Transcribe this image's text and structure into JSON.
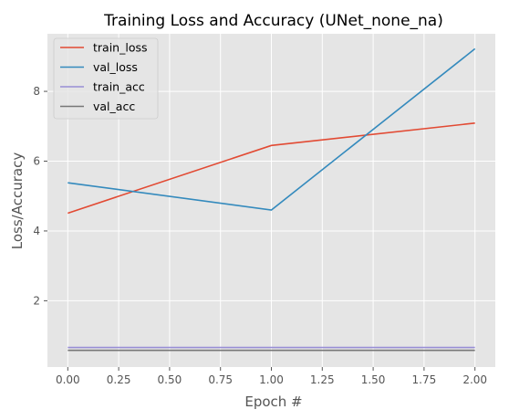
{
  "chart_data": {
    "type": "line",
    "title": "Training Loss and Accuracy (UNet_none_na)",
    "xlabel": "Epoch #",
    "ylabel": "Loss/Accuracy",
    "x": [
      0,
      1,
      2
    ],
    "xlim": [
      -0.1,
      2.1
    ],
    "ylim": [
      0.1,
      9.65
    ],
    "xticks": [
      0,
      0.25,
      0.5,
      0.75,
      1,
      1.25,
      1.5,
      1.75,
      2
    ],
    "xtick_labels": [
      "0.00",
      "0.25",
      "0.50",
      "0.75",
      "1.00",
      "1.25",
      "1.50",
      "1.75",
      "2.00"
    ],
    "yticks": [
      2,
      4,
      6,
      8
    ],
    "ytick_labels": [
      "2",
      "4",
      "6",
      "8"
    ],
    "grid": true,
    "legend_position": "top-left",
    "series": [
      {
        "name": "train_loss",
        "values": [
          4.51,
          6.45,
          7.09
        ],
        "color": "#E24A33"
      },
      {
        "name": "val_loss",
        "values": [
          5.38,
          4.6,
          9.22
        ],
        "color": "#348ABD"
      },
      {
        "name": "train_acc",
        "values": [
          0.66,
          0.66,
          0.66
        ],
        "color": "#988ED5"
      },
      {
        "name": "val_acc",
        "values": [
          0.58,
          0.58,
          0.58
        ],
        "color": "#777777"
      }
    ]
  }
}
